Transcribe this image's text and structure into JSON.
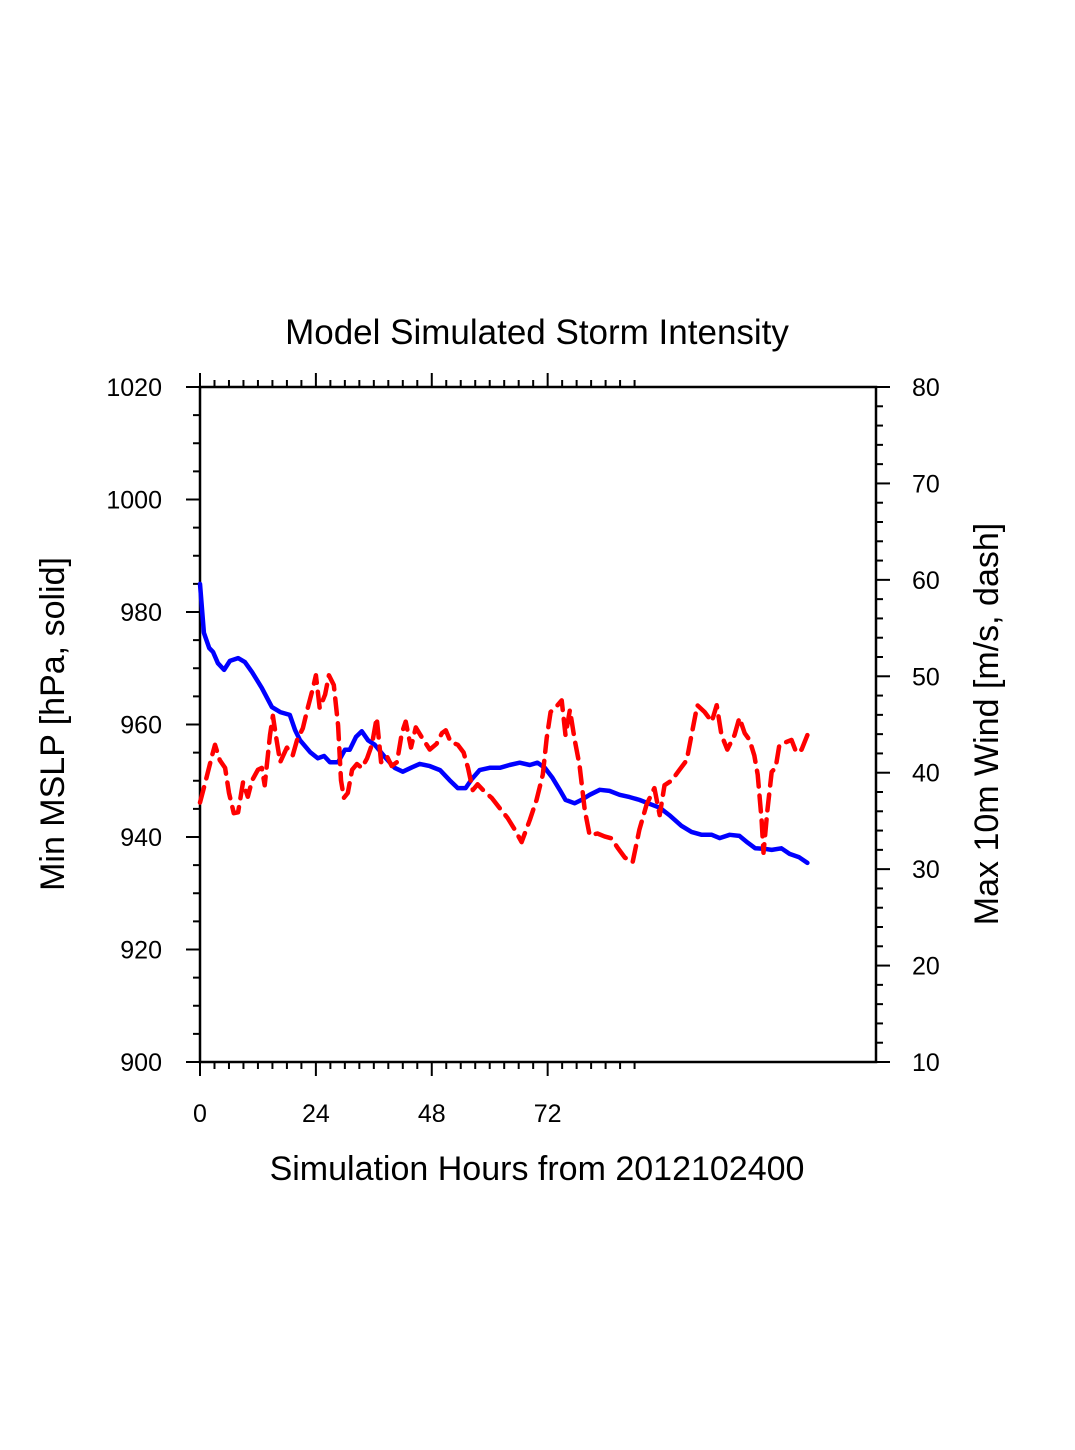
{
  "chart_data": {
    "type": "line",
    "title": "Model Simulated Storm Intensity",
    "xlabel": "Simulation Hours from 2012102400",
    "ylabel": "Min MSLP  [hPa, solid]",
    "ylabel_right": "Max 10m Wind  [m/s, dash]",
    "xlim": [
      0,
      140
    ],
    "ylim": [
      900,
      1020
    ],
    "ylim_right": [
      10,
      80
    ],
    "x_ticks": [
      0,
      24,
      48,
      72
    ],
    "x_tick_labels": [
      "0",
      "24",
      "48",
      "72"
    ],
    "x_minor_step": 3,
    "x_minor_max": 90,
    "y_ticks": [
      900,
      920,
      940,
      960,
      980,
      1000,
      1020
    ],
    "y_tick_labels": [
      "900",
      "920",
      "940",
      "960",
      "980",
      "1000",
      "1020"
    ],
    "y_minor_step": 5,
    "y_right_ticks": [
      10,
      20,
      30,
      40,
      50,
      60,
      70,
      80
    ],
    "y_right_tick_labels": [
      "10",
      "20",
      "30",
      "40",
      "50",
      "60",
      "70",
      "80"
    ],
    "y_right_minor_step": 2,
    "grid": false,
    "legend": "none",
    "series": [
      {
        "name": "Min MSLP",
        "axis": "left",
        "style": "solid",
        "color": "#0000ff",
        "x": [
          0,
          0.8,
          1.9,
          2.7,
          3.7,
          5.0,
          6.2,
          7.9,
          9.3,
          10.8,
          12.8,
          14.9,
          16.6,
          18.6,
          19.7,
          20.7,
          22.8,
          24.4,
          25.7,
          26.9,
          28.6,
          30.0,
          31.0,
          32.3,
          33.5,
          34.8,
          36.2,
          38.3,
          40.3,
          42.0,
          43.9,
          45.5,
          47.6,
          49.7,
          51.7,
          53.4,
          55.0,
          56.3,
          57.9,
          60.0,
          62.1,
          64.1,
          66.2,
          68.3,
          69.9,
          71.4,
          73.0,
          74.5,
          75.7,
          77.6,
          79.0,
          80.7,
          82.8,
          84.8,
          86.9,
          89.0,
          91.0,
          93.1,
          95.2,
          97.2,
          99.7,
          101.8,
          103.9,
          106.0,
          107.6,
          109.7,
          111.7,
          113.4,
          115.0,
          116.9,
          118.4,
          120.4,
          122.1,
          124.1,
          125.8
        ],
        "values": [
          985.0,
          976.3,
          973.6,
          972.9,
          970.9,
          969.7,
          971.3,
          971.8,
          971.1,
          969.3,
          966.5,
          963.1,
          962.2,
          961.7,
          959.0,
          957.2,
          955.1,
          954.0,
          954.4,
          953.3,
          953.3,
          955.5,
          955.5,
          957.8,
          958.8,
          957.2,
          956.4,
          954.2,
          952.3,
          951.6,
          952.4,
          953.0,
          952.6,
          951.9,
          950.1,
          948.7,
          948.7,
          950.3,
          951.9,
          952.3,
          952.3,
          952.8,
          953.2,
          952.8,
          953.2,
          952.3,
          950.5,
          948.4,
          946.6,
          946.0,
          946.6,
          947.5,
          948.4,
          948.2,
          947.5,
          947.1,
          946.6,
          945.9,
          945.2,
          943.9,
          942.0,
          940.9,
          940.4,
          940.4,
          939.8,
          940.4,
          940.2,
          939.0,
          938.0,
          937.9,
          937.7,
          938.0,
          937.0,
          936.4,
          935.4
        ]
      },
      {
        "name": "Max 10m Wind",
        "axis": "right",
        "style": "dash",
        "color": "#ff0000",
        "x": [
          0,
          1.2,
          2.5,
          3.1,
          4.1,
          5.2,
          6.0,
          7.0,
          7.9,
          8.9,
          9.9,
          10.8,
          12.0,
          12.8,
          13.4,
          14.5,
          15.1,
          15.7,
          16.6,
          18.0,
          19.2,
          20.1,
          21.3,
          22.3,
          23.4,
          24.0,
          24.8,
          25.9,
          26.7,
          27.7,
          28.6,
          29.2,
          29.8,
          30.6,
          31.5,
          32.5,
          33.5,
          34.6,
          35.6,
          36.6,
          37.5,
          38.7,
          39.7,
          40.8,
          41.8,
          42.6,
          43.7,
          44.7,
          45.9,
          47.6,
          49.0,
          50.1,
          50.9,
          51.9,
          53.4,
          54.6,
          55.5,
          56.5,
          57.5,
          59.0,
          60.4,
          62.1,
          63.7,
          65.2,
          66.6,
          68.3,
          69.7,
          71.0,
          71.8,
          72.6,
          73.7,
          74.9,
          75.7,
          76.6,
          77.6,
          78.6,
          79.7,
          80.7,
          82.3,
          83.8,
          85.2,
          86.5,
          88.0,
          89.6,
          91.0,
          92.5,
          94.1,
          95.2,
          96.2,
          97.7,
          99.3,
          100.8,
          101.8,
          103.0,
          104.5,
          106.0,
          107.0,
          108.0,
          109.2,
          110.7,
          111.7,
          112.8,
          113.8,
          114.8,
          115.5,
          116.3,
          116.7,
          117.5,
          118.4,
          119.2,
          120.0,
          121.5,
          122.5,
          123.5,
          124.6,
          125.8
        ],
        "values": [
          36.9,
          39.2,
          41.8,
          42.9,
          41.3,
          40.5,
          37.9,
          35.8,
          35.9,
          39.0,
          37.5,
          39.2,
          40.3,
          40.5,
          38.7,
          43.9,
          45.9,
          43.9,
          41.1,
          42.6,
          41.8,
          43.4,
          44.6,
          46.7,
          48.8,
          50.1,
          46.7,
          48.1,
          50.1,
          49.1,
          44.9,
          39.2,
          37.4,
          37.9,
          40.3,
          40.9,
          40.5,
          41.5,
          42.9,
          45.7,
          41.1,
          41.7,
          40.7,
          41.1,
          44.1,
          45.3,
          42.6,
          44.7,
          43.7,
          42.4,
          43.0,
          44.1,
          44.4,
          43.2,
          42.9,
          42.1,
          40.5,
          38.2,
          38.8,
          38.0,
          37.4,
          36.3,
          35.3,
          34.1,
          32.8,
          35.1,
          37.2,
          39.8,
          43.6,
          46.3,
          46.8,
          47.5,
          43.9,
          46.5,
          43.4,
          40.8,
          36.1,
          33.5,
          33.7,
          33.4,
          33.2,
          32.2,
          31.2,
          30.7,
          34.1,
          36.7,
          38.4,
          35.6,
          38.7,
          39.2,
          40.3,
          41.3,
          43.9,
          47.0,
          46.3,
          45.3,
          47.0,
          43.9,
          42.4,
          43.9,
          45.7,
          44.1,
          43.4,
          41.8,
          39.8,
          35.1,
          31.7,
          36.1,
          40.1,
          40.5,
          42.9,
          43.2,
          43.4,
          42.1,
          42.4,
          43.9
        ]
      }
    ]
  }
}
